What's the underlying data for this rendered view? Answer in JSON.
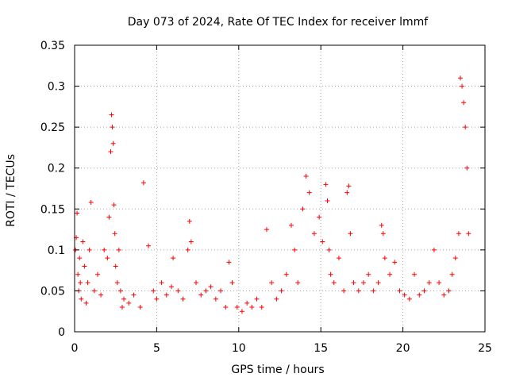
{
  "chart_data": {
    "type": "scatter",
    "title": "Day 073 of 2024, Rate Of TEC Index for receiver lmmf",
    "xlabel": "GPS time / hours",
    "ylabel": "ROTI / TECUs",
    "xlim": [
      0,
      25
    ],
    "ylim": [
      0,
      0.35
    ],
    "xticks": [
      0,
      5,
      10,
      15,
      20,
      25
    ],
    "yticks": [
      0,
      0.05,
      0.1,
      0.15,
      0.2,
      0.25,
      0.3,
      0.35
    ],
    "xtick_labels": [
      "0",
      "5",
      "10",
      "15",
      "20",
      "25"
    ],
    "ytick_labels": [
      "0",
      "0.05",
      "0.1",
      "0.15",
      "0.2",
      "0.25",
      "0.3",
      "0.35"
    ],
    "grid": true,
    "marker": "+",
    "color": "#ff0000",
    "series": [
      {
        "name": "ROTI",
        "x": [
          0.05,
          0.1,
          0.15,
          0.2,
          0.25,
          0.3,
          0.35,
          0.4,
          0.5,
          0.6,
          0.7,
          0.8,
          0.9,
          1.0,
          1.2,
          1.4,
          1.6,
          1.8,
          2.0,
          2.1,
          2.2,
          2.25,
          2.3,
          2.35,
          2.4,
          2.45,
          2.5,
          2.6,
          2.7,
          2.8,
          2.9,
          3.0,
          3.3,
          3.6,
          4.0,
          4.2,
          4.5,
          4.8,
          5.0,
          5.3,
          5.6,
          5.9,
          6.0,
          6.3,
          6.6,
          6.9,
          7.0,
          7.1,
          7.4,
          7.7,
          8.0,
          8.3,
          8.6,
          8.9,
          9.2,
          9.4,
          9.6,
          9.9,
          10.2,
          10.5,
          10.8,
          11.1,
          11.4,
          11.7,
          12.0,
          12.3,
          12.6,
          12.9,
          13.2,
          13.4,
          13.6,
          13.9,
          14.1,
          14.3,
          14.6,
          14.9,
          15.1,
          15.3,
          15.4,
          15.5,
          15.6,
          15.8,
          16.1,
          16.4,
          16.6,
          16.7,
          16.8,
          17.0,
          17.3,
          17.6,
          17.9,
          18.2,
          18.5,
          18.7,
          18.8,
          18.9,
          19.2,
          19.5,
          19.8,
          20.1,
          20.4,
          20.7,
          21.0,
          21.3,
          21.6,
          21.9,
          22.2,
          22.5,
          22.8,
          23.0,
          23.2,
          23.4,
          23.5,
          23.6,
          23.7,
          23.8,
          23.9,
          24.0
        ],
        "y": [
          0.1,
          0.115,
          0.145,
          0.07,
          0.05,
          0.09,
          0.06,
          0.04,
          0.11,
          0.08,
          0.035,
          0.06,
          0.1,
          0.158,
          0.05,
          0.07,
          0.045,
          0.1,
          0.09,
          0.14,
          0.22,
          0.265,
          0.25,
          0.23,
          0.155,
          0.12,
          0.08,
          0.06,
          0.1,
          0.05,
          0.03,
          0.04,
          0.035,
          0.045,
          0.03,
          0.182,
          0.105,
          0.05,
          0.04,
          0.06,
          0.045,
          0.055,
          0.09,
          0.05,
          0.04,
          0.1,
          0.135,
          0.11,
          0.06,
          0.045,
          0.05,
          0.055,
          0.04,
          0.05,
          0.03,
          0.085,
          0.06,
          0.03,
          0.025,
          0.035,
          0.03,
          0.04,
          0.03,
          0.125,
          0.06,
          0.04,
          0.05,
          0.07,
          0.13,
          0.1,
          0.06,
          0.15,
          0.19,
          0.17,
          0.12,
          0.14,
          0.11,
          0.18,
          0.16,
          0.1,
          0.07,
          0.06,
          0.09,
          0.05,
          0.17,
          0.178,
          0.12,
          0.06,
          0.05,
          0.06,
          0.07,
          0.05,
          0.06,
          0.13,
          0.12,
          0.09,
          0.07,
          0.085,
          0.05,
          0.045,
          0.04,
          0.07,
          0.045,
          0.05,
          0.06,
          0.1,
          0.06,
          0.045,
          0.05,
          0.07,
          0.09,
          0.12,
          0.31,
          0.3,
          0.28,
          0.25,
          0.2,
          0.12
        ]
      }
    ]
  }
}
